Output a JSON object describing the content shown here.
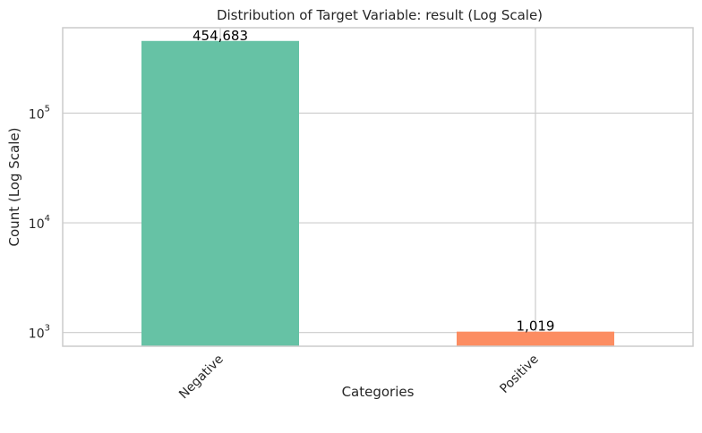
{
  "chart_data": {
    "type": "bar",
    "title": "Distribution of Target Variable: result (Log Scale)",
    "xlabel": "Categories",
    "ylabel": "Count (Log Scale)",
    "yscale": "log",
    "ylim": [
      750,
      600000
    ],
    "yticks": [
      {
        "value": 1000,
        "base": "10",
        "exp": "3"
      },
      {
        "value": 10000,
        "base": "10",
        "exp": "4"
      },
      {
        "value": 100000,
        "base": "10",
        "exp": "5"
      }
    ],
    "categories": [
      "Negative",
      "Positive"
    ],
    "values": [
      454683,
      1019
    ],
    "data_labels": [
      "454,683",
      "1,019"
    ],
    "colors": [
      "#66c2a5",
      "#fc8d62"
    ],
    "grid": true,
    "grid_color": "#cccccc",
    "frame_color": "#cccccc"
  }
}
